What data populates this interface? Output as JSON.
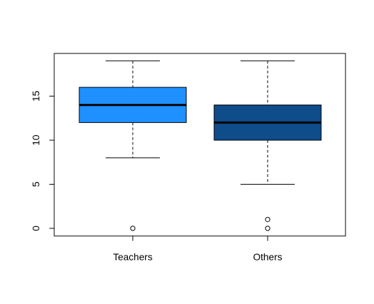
{
  "chart_data": {
    "type": "boxplot",
    "categories": [
      "Teachers",
      "Others"
    ],
    "boxes": [
      {
        "label": "Teachers",
        "whisker_low": 8,
        "q1": 12,
        "median": 14,
        "q3": 16,
        "whisker_high": 19,
        "outliers": [
          0
        ],
        "color": "#1E90FF"
      },
      {
        "label": "Others",
        "whisker_low": 5,
        "q1": 10,
        "median": 12,
        "q3": 14,
        "whisker_high": 19,
        "outliers": [
          0,
          1
        ],
        "color": "#0F4C8A"
      }
    ],
    "y_ticks": [
      0,
      5,
      10,
      15
    ],
    "ylim": [
      -0.8,
      19.9
    ],
    "title": "",
    "xlabel": "",
    "ylabel": "",
    "grid": false
  }
}
